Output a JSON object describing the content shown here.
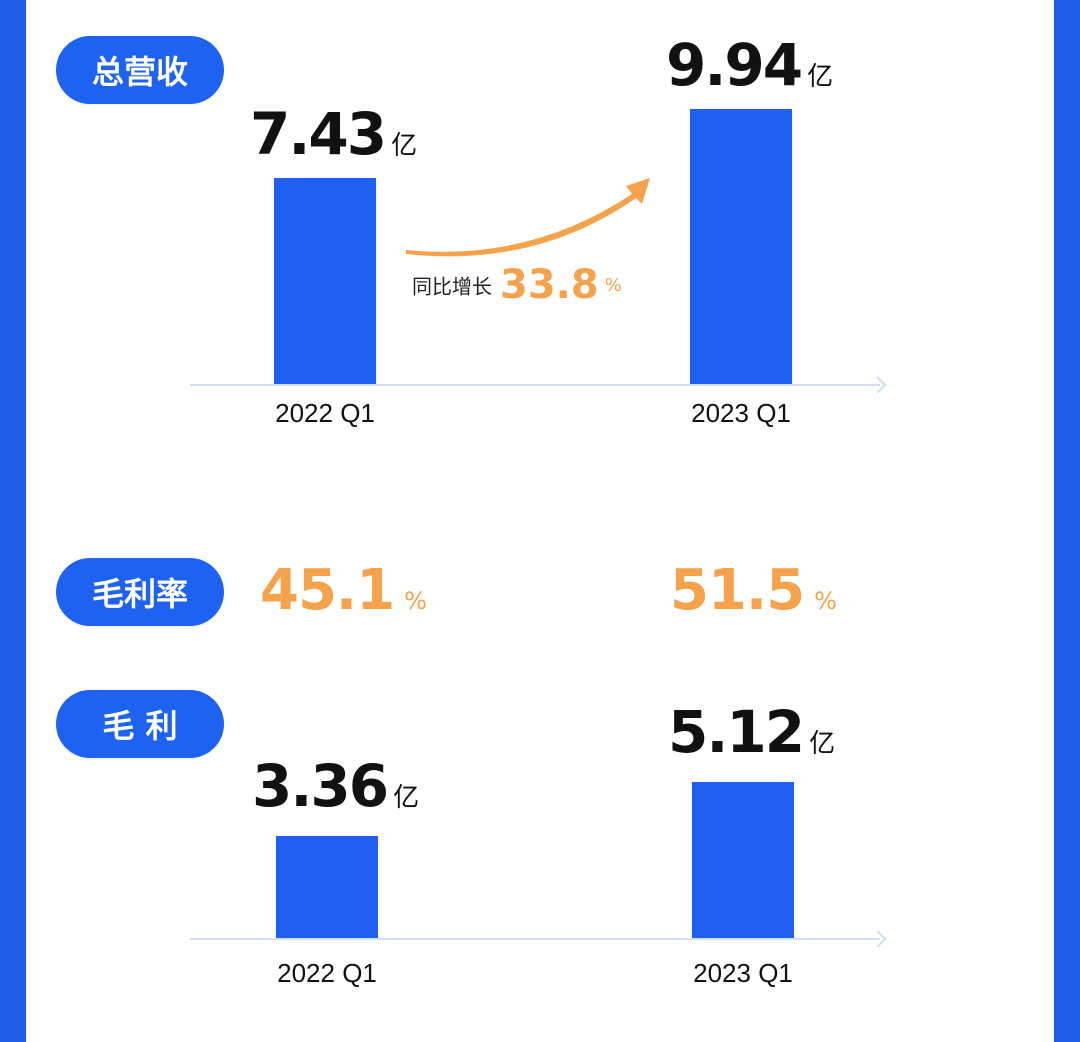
{
  "colors": {
    "background": "#1f5fe8",
    "bar": "#1f5ff2",
    "accent": "#f4a24c",
    "pill": "#1e62f1",
    "text": "#111111"
  },
  "sections": {
    "revenue": {
      "title": "总营收"
    },
    "margin_rate": {
      "title": "毛利率",
      "values": [
        "45.1",
        "51.5"
      ],
      "unit": "%"
    },
    "gross_profit": {
      "title": "毛 利"
    }
  },
  "growth": {
    "label": "同比增长",
    "value": "33.8",
    "unit": "%"
  },
  "chart_data": [
    {
      "type": "bar",
      "title": "总营收",
      "categories": [
        "2022 Q1",
        "2023 Q1"
      ],
      "values": [
        7.43,
        9.94
      ],
      "value_labels": [
        "7.43",
        "9.94"
      ],
      "unit": "亿",
      "grid": false
    },
    {
      "type": "bar",
      "title": "毛 利",
      "categories": [
        "2022 Q1",
        "2023 Q1"
      ],
      "values": [
        3.36,
        5.12
      ],
      "value_labels": [
        "3.36",
        "5.12"
      ],
      "unit": "亿",
      "grid": false
    }
  ]
}
